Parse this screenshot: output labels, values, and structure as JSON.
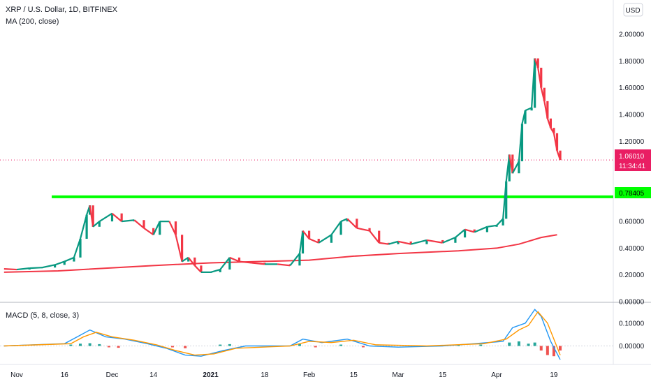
{
  "chart_data": [
    {
      "type": "candlestick",
      "title": "XRP / U.S. Dollar, 1D, BITFINEX",
      "indicator_label": "MA (200, close)",
      "currency_button": "USD",
      "y_ticks": [
        "2.00000",
        "1.80000",
        "1.60000",
        "1.40000",
        "1.20000",
        "0.60000",
        "0.40000",
        "0.20000",
        "0.00000"
      ],
      "ylim": [
        0.0,
        2.1
      ],
      "x_ticks": [
        {
          "label": "Nov",
          "date": "2020-11-01"
        },
        {
          "label": "16",
          "date": "2020-11-16"
        },
        {
          "label": "Dec",
          "date": "2020-12-01"
        },
        {
          "label": "14",
          "date": "2020-12-14"
        },
        {
          "label": "2021",
          "date": "2021-01-01",
          "bold": true
        },
        {
          "label": "18",
          "date": "2021-01-18"
        },
        {
          "label": "Feb",
          "date": "2021-02-01"
        },
        {
          "label": "15",
          "date": "2021-02-15"
        },
        {
          "label": "Mar",
          "date": "2021-03-01"
        },
        {
          "label": "15",
          "date": "2021-03-15"
        },
        {
          "label": "Apr",
          "date": "2021-04-01"
        },
        {
          "label": "19",
          "date": "2021-04-19"
        }
      ],
      "current_price": {
        "value": "1.06010",
        "y": 1.0601,
        "countdown": "11:34:41",
        "color": "#e91e63"
      },
      "horizontal_level": {
        "value": "0.78405",
        "y": 0.78405,
        "color": "#00ff00",
        "start_date": "2020-11-12"
      },
      "close_series": [
        {
          "x": "2020-10-28",
          "y": 0.245
        },
        {
          "x": "2020-11-01",
          "y": 0.24
        },
        {
          "x": "2020-11-05",
          "y": 0.25
        },
        {
          "x": "2020-11-09",
          "y": 0.255
        },
        {
          "x": "2020-11-13",
          "y": 0.275
        },
        {
          "x": "2020-11-16",
          "y": 0.3
        },
        {
          "x": "2020-11-19",
          "y": 0.33
        },
        {
          "x": "2020-11-21",
          "y": 0.47
        },
        {
          "x": "2020-11-23",
          "y": 0.65
        },
        {
          "x": "2020-11-24",
          "y": 0.72
        },
        {
          "x": "2020-11-25",
          "y": 0.56
        },
        {
          "x": "2020-11-27",
          "y": 0.6
        },
        {
          "x": "2020-12-01",
          "y": 0.66
        },
        {
          "x": "2020-12-04",
          "y": 0.6
        },
        {
          "x": "2020-12-08",
          "y": 0.61
        },
        {
          "x": "2020-12-11",
          "y": 0.55
        },
        {
          "x": "2020-12-14",
          "y": 0.5
        },
        {
          "x": "2020-12-16",
          "y": 0.6
        },
        {
          "x": "2020-12-19",
          "y": 0.6
        },
        {
          "x": "2020-12-21",
          "y": 0.5
        },
        {
          "x": "2020-12-23",
          "y": 0.3
        },
        {
          "x": "2020-12-25",
          "y": 0.33
        },
        {
          "x": "2020-12-27",
          "y": 0.27
        },
        {
          "x": "2020-12-29",
          "y": 0.22
        },
        {
          "x": "2021-01-01",
          "y": 0.22
        },
        {
          "x": "2021-01-04",
          "y": 0.24
        },
        {
          "x": "2021-01-07",
          "y": 0.33
        },
        {
          "x": "2021-01-10",
          "y": 0.3
        },
        {
          "x": "2021-01-14",
          "y": 0.29
        },
        {
          "x": "2021-01-18",
          "y": 0.28
        },
        {
          "x": "2021-01-22",
          "y": 0.28
        },
        {
          "x": "2021-01-26",
          "y": 0.27
        },
        {
          "x": "2021-01-29",
          "y": 0.36
        },
        {
          "x": "2021-01-30",
          "y": 0.53
        },
        {
          "x": "2021-02-01",
          "y": 0.47
        },
        {
          "x": "2021-02-04",
          "y": 0.44
        },
        {
          "x": "2021-02-08",
          "y": 0.5
        },
        {
          "x": "2021-02-11",
          "y": 0.6
        },
        {
          "x": "2021-02-13",
          "y": 0.62
        },
        {
          "x": "2021-02-16",
          "y": 0.55
        },
        {
          "x": "2021-02-20",
          "y": 0.53
        },
        {
          "x": "2021-02-23",
          "y": 0.44
        },
        {
          "x": "2021-02-26",
          "y": 0.43
        },
        {
          "x": "2021-03-01",
          "y": 0.45
        },
        {
          "x": "2021-03-05",
          "y": 0.43
        },
        {
          "x": "2021-03-10",
          "y": 0.46
        },
        {
          "x": "2021-03-15",
          "y": 0.44
        },
        {
          "x": "2021-03-19",
          "y": 0.48
        },
        {
          "x": "2021-03-22",
          "y": 0.54
        },
        {
          "x": "2021-03-25",
          "y": 0.52
        },
        {
          "x": "2021-03-29",
          "y": 0.56
        },
        {
          "x": "2021-04-01",
          "y": 0.57
        },
        {
          "x": "2021-04-03",
          "y": 0.62
        },
        {
          "x": "2021-04-04",
          "y": 0.9
        },
        {
          "x": "2021-04-05",
          "y": 1.1
        },
        {
          "x": "2021-04-06",
          "y": 0.96
        },
        {
          "x": "2021-04-08",
          "y": 1.05
        },
        {
          "x": "2021-04-09",
          "y": 1.33
        },
        {
          "x": "2021-04-10",
          "y": 1.43
        },
        {
          "x": "2021-04-12",
          "y": 1.45
        },
        {
          "x": "2021-04-13",
          "y": 1.82
        },
        {
          "x": "2021-04-14",
          "y": 1.75
        },
        {
          "x": "2021-04-15",
          "y": 1.6
        },
        {
          "x": "2021-04-16",
          "y": 1.5
        },
        {
          "x": "2021-04-17",
          "y": 1.37
        },
        {
          "x": "2021-04-18",
          "y": 1.3
        },
        {
          "x": "2021-04-19",
          "y": 1.26
        },
        {
          "x": "2021-04-20",
          "y": 1.13
        },
        {
          "x": "2021-04-21",
          "y": 1.06
        }
      ],
      "ma_series": [
        {
          "x": "2020-10-28",
          "y": 0.22
        },
        {
          "x": "2020-11-14",
          "y": 0.23
        },
        {
          "x": "2020-12-14",
          "y": 0.27
        },
        {
          "x": "2021-01-01",
          "y": 0.29
        },
        {
          "x": "2021-02-01",
          "y": 0.31
        },
        {
          "x": "2021-02-15",
          "y": 0.34
        },
        {
          "x": "2021-03-01",
          "y": 0.36
        },
        {
          "x": "2021-03-20",
          "y": 0.38
        },
        {
          "x": "2021-04-01",
          "y": 0.4
        },
        {
          "x": "2021-04-08",
          "y": 0.43
        },
        {
          "x": "2021-04-15",
          "y": 0.48
        },
        {
          "x": "2021-04-20",
          "y": 0.5
        }
      ]
    },
    {
      "type": "line",
      "title": "MACD (5, 8, close, 3)",
      "y_ticks": [
        "0.10000",
        "0.00000"
      ],
      "ylim": [
        -0.075,
        0.17
      ],
      "series": [
        {
          "color": "#2196f3",
          "values": [
            {
              "x": "2020-10-28",
              "y": 0.0
            },
            {
              "x": "2020-11-16",
              "y": 0.01
            },
            {
              "x": "2020-11-20",
              "y": 0.04
            },
            {
              "x": "2020-11-24",
              "y": 0.07
            },
            {
              "x": "2020-11-29",
              "y": 0.04
            },
            {
              "x": "2020-12-05",
              "y": 0.03
            },
            {
              "x": "2020-12-12",
              "y": 0.01
            },
            {
              "x": "2020-12-18",
              "y": -0.01
            },
            {
              "x": "2020-12-24",
              "y": -0.04
            },
            {
              "x": "2020-12-29",
              "y": -0.045
            },
            {
              "x": "2021-01-05",
              "y": -0.02
            },
            {
              "x": "2021-01-12",
              "y": 0.0
            },
            {
              "x": "2021-01-26",
              "y": 0.0
            },
            {
              "x": "2021-01-30",
              "y": 0.03
            },
            {
              "x": "2021-02-05",
              "y": 0.015
            },
            {
              "x": "2021-02-13",
              "y": 0.03
            },
            {
              "x": "2021-02-20",
              "y": 0.0
            },
            {
              "x": "2021-03-01",
              "y": -0.005
            },
            {
              "x": "2021-03-15",
              "y": 0.0
            },
            {
              "x": "2021-03-25",
              "y": 0.01
            },
            {
              "x": "2021-04-03",
              "y": 0.02
            },
            {
              "x": "2021-04-06",
              "y": 0.08
            },
            {
              "x": "2021-04-10",
              "y": 0.1
            },
            {
              "x": "2021-04-13",
              "y": 0.16
            },
            {
              "x": "2021-04-15",
              "y": 0.13
            },
            {
              "x": "2021-04-18",
              "y": 0.02
            },
            {
              "x": "2021-04-21",
              "y": -0.06
            }
          ]
        },
        {
          "color": "#ff9800",
          "values": [
            {
              "x": "2020-10-28",
              "y": 0.0
            },
            {
              "x": "2020-11-18",
              "y": 0.01
            },
            {
              "x": "2020-11-22",
              "y": 0.04
            },
            {
              "x": "2020-11-26",
              "y": 0.06
            },
            {
              "x": "2020-12-01",
              "y": 0.04
            },
            {
              "x": "2020-12-08",
              "y": 0.025
            },
            {
              "x": "2020-12-15",
              "y": 0.005
            },
            {
              "x": "2020-12-21",
              "y": -0.02
            },
            {
              "x": "2020-12-27",
              "y": -0.04
            },
            {
              "x": "2021-01-02",
              "y": -0.035
            },
            {
              "x": "2021-01-09",
              "y": -0.01
            },
            {
              "x": "2021-01-26",
              "y": 0.0
            },
            {
              "x": "2021-02-01",
              "y": 0.02
            },
            {
              "x": "2021-02-08",
              "y": 0.015
            },
            {
              "x": "2021-02-15",
              "y": 0.025
            },
            {
              "x": "2021-02-22",
              "y": 0.005
            },
            {
              "x": "2021-03-10",
              "y": 0.0
            },
            {
              "x": "2021-03-28",
              "y": 0.01
            },
            {
              "x": "2021-04-04",
              "y": 0.03
            },
            {
              "x": "2021-04-08",
              "y": 0.07
            },
            {
              "x": "2021-04-11",
              "y": 0.09
            },
            {
              "x": "2021-04-14",
              "y": 0.15
            },
            {
              "x": "2021-04-17",
              "y": 0.1
            },
            {
              "x": "2021-04-21",
              "y": -0.04
            }
          ]
        }
      ],
      "histogram": [
        {
          "x": "2020-11-18",
          "y": 0.006
        },
        {
          "x": "2020-11-21",
          "y": 0.01
        },
        {
          "x": "2020-11-24",
          "y": 0.012
        },
        {
          "x": "2020-11-27",
          "y": 0.008
        },
        {
          "x": "2020-11-30",
          "y": -0.006
        },
        {
          "x": "2020-12-03",
          "y": -0.008
        },
        {
          "x": "2020-12-16",
          "y": -0.004
        },
        {
          "x": "2020-12-20",
          "y": -0.006
        },
        {
          "x": "2020-12-24",
          "y": -0.01
        },
        {
          "x": "2021-01-04",
          "y": 0.006
        },
        {
          "x": "2021-01-07",
          "y": 0.008
        },
        {
          "x": "2021-01-29",
          "y": 0.008
        },
        {
          "x": "2021-02-03",
          "y": -0.006
        },
        {
          "x": "2021-02-11",
          "y": 0.006
        },
        {
          "x": "2021-02-18",
          "y": -0.006
        },
        {
          "x": "2021-03-20",
          "y": 0.005
        },
        {
          "x": "2021-03-27",
          "y": 0.006
        },
        {
          "x": "2021-04-05",
          "y": 0.015
        },
        {
          "x": "2021-04-08",
          "y": 0.02
        },
        {
          "x": "2021-04-11",
          "y": 0.01
        },
        {
          "x": "2021-04-13",
          "y": 0.015
        },
        {
          "x": "2021-04-15",
          "y": -0.02
        },
        {
          "x": "2021-04-17",
          "y": -0.04
        },
        {
          "x": "2021-04-19",
          "y": -0.045
        },
        {
          "x": "2021-04-21",
          "y": -0.02
        }
      ]
    }
  ]
}
